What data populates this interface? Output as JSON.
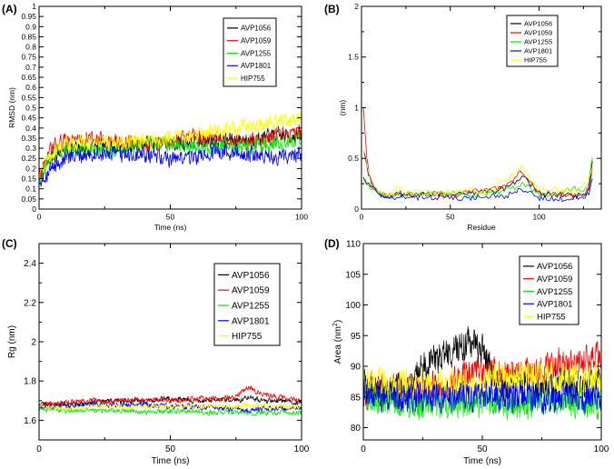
{
  "panels": [
    {
      "id": "A",
      "panel_label": "(A)",
      "font": "sans",
      "xlabel": "Time (ns)",
      "ylabel": "RMSD (nm)",
      "xlim": [
        0,
        100
      ],
      "ylim": [
        0,
        1
      ],
      "xticks": [
        0,
        50,
        100
      ],
      "yticks": [
        0,
        0.05,
        0.1,
        0.15,
        0.2,
        0.25,
        0.3,
        0.35,
        0.4,
        0.45,
        0.5,
        0.55,
        0.6,
        0.65,
        0.7,
        0.75,
        0.8,
        0.85,
        0.9,
        0.95,
        1
      ],
      "ytick_labels": [
        "0",
        "0.05",
        "0.1",
        "0.15",
        "0.2",
        "0.25",
        "0.3",
        "0.35",
        "0.4",
        "0.45",
        "0.5",
        "0.55",
        "0.6",
        "0.65",
        "0.7",
        "0.75",
        "0.8",
        "0.85",
        "0.9",
        "0.95",
        "1"
      ],
      "legend": [
        "AVP1056",
        "AVP1059",
        "AVP1255",
        "AVP1801",
        "HIP755"
      ]
    },
    {
      "id": "B",
      "panel_label": "(B)",
      "font": "sans",
      "xlabel": "Residue",
      "ylabel": "(nm)",
      "xlim": [
        0,
        135
      ],
      "ylim": [
        0,
        2
      ],
      "xticks": [
        0,
        50,
        100
      ],
      "yticks": [
        0,
        0.5,
        1,
        1.5,
        2
      ],
      "ytick_labels": [
        "0",
        "0.5",
        "1",
        "1.5",
        "2"
      ],
      "legend": [
        "AVP1056",
        "AVP1059",
        "AVP1255",
        "AVP1801",
        "HIP755"
      ]
    },
    {
      "id": "C",
      "panel_label": "(C)",
      "font": "serif",
      "xlabel": "Time (ns)",
      "ylabel": "Rg (nm)",
      "xlim": [
        0,
        100
      ],
      "ylim": [
        1.5,
        2.5
      ],
      "xticks": [
        0,
        50,
        100
      ],
      "yticks": [
        1.6,
        1.8,
        2,
        2.2,
        2.4
      ],
      "ytick_labels": [
        "1.6",
        "1.8",
        "2",
        "2.2",
        "2.4"
      ],
      "legend": [
        "AVP1056",
        "AVP1059",
        "AVP1255",
        "AVP1801",
        "HIP755"
      ]
    },
    {
      "id": "D",
      "panel_label": "(D)",
      "font": "serif",
      "xlabel": "Time (ns)",
      "ylabel": "Area (nm",
      "ylabel_sup": "2",
      "ylabel_close": ")",
      "xlim": [
        0,
        100
      ],
      "ylim": [
        78,
        110
      ],
      "xticks": [
        0,
        50,
        100
      ],
      "yticks": [
        80,
        85,
        90,
        95,
        100,
        105,
        110
      ],
      "ytick_labels": [
        "80",
        "85",
        "90",
        "95",
        "100",
        "105",
        "110"
      ],
      "legend": [
        "AVP1056",
        "AVP1059",
        "AVP1255",
        "AVP1801",
        "HIP755"
      ]
    }
  ],
  "colors": {
    "AVP1056": "#000000",
    "AVP1059": "#ff0000",
    "AVP1255": "#00ee00",
    "AVP1801": "#0000ff",
    "HIP755": "#ffff00"
  },
  "chart_data": [
    {
      "type": "line",
      "title": "(A)",
      "xlabel": "Time (ns)",
      "ylabel": "RMSD (nm)",
      "xlim": [
        0,
        100
      ],
      "ylim": [
        0,
        1
      ],
      "x": [
        0,
        5,
        10,
        20,
        30,
        40,
        50,
        60,
        70,
        80,
        90,
        100
      ],
      "series": [
        {
          "name": "AVP1056",
          "values": [
            0.15,
            0.26,
            0.29,
            0.3,
            0.31,
            0.32,
            0.32,
            0.33,
            0.34,
            0.34,
            0.36,
            0.36
          ]
        },
        {
          "name": "AVP1059",
          "values": [
            0.16,
            0.3,
            0.34,
            0.35,
            0.33,
            0.32,
            0.33,
            0.36,
            0.33,
            0.33,
            0.35,
            0.38
          ]
        },
        {
          "name": "AVP1255",
          "values": [
            0.15,
            0.27,
            0.29,
            0.29,
            0.29,
            0.31,
            0.33,
            0.3,
            0.31,
            0.31,
            0.32,
            0.34
          ]
        },
        {
          "name": "AVP1801",
          "values": [
            0.14,
            0.2,
            0.25,
            0.27,
            0.27,
            0.26,
            0.25,
            0.26,
            0.29,
            0.27,
            0.26,
            0.27
          ]
        },
        {
          "name": "HIP755",
          "values": [
            0.18,
            0.28,
            0.32,
            0.33,
            0.33,
            0.34,
            0.35,
            0.36,
            0.39,
            0.41,
            0.43,
            0.45
          ]
        }
      ]
    },
    {
      "type": "line",
      "title": "(B)",
      "xlabel": "Residue",
      "ylabel": "(nm)",
      "xlim": [
        0,
        135
      ],
      "ylim": [
        0,
        2
      ],
      "x": [
        1,
        3,
        6,
        10,
        15,
        20,
        30,
        40,
        50,
        60,
        70,
        80,
        85,
        90,
        95,
        100,
        110,
        120,
        125,
        128,
        130
      ],
      "series": [
        {
          "name": "AVP1056",
          "values": [
            0.3,
            0.25,
            0.2,
            0.15,
            0.12,
            0.15,
            0.13,
            0.16,
            0.14,
            0.15,
            0.16,
            0.2,
            0.25,
            0.32,
            0.25,
            0.15,
            0.14,
            0.13,
            0.13,
            0.2,
            0.45
          ]
        },
        {
          "name": "AVP1059",
          "values": [
            1.0,
            0.5,
            0.22,
            0.15,
            0.12,
            0.16,
            0.14,
            0.15,
            0.13,
            0.17,
            0.18,
            0.22,
            0.28,
            0.38,
            0.28,
            0.16,
            0.15,
            0.13,
            0.13,
            0.2,
            0.4
          ]
        },
        {
          "name": "AVP1255",
          "values": [
            0.3,
            0.25,
            0.2,
            0.15,
            0.12,
            0.14,
            0.15,
            0.14,
            0.16,
            0.13,
            0.15,
            0.18,
            0.2,
            0.25,
            0.2,
            0.14,
            0.16,
            0.2,
            0.15,
            0.25,
            0.5
          ]
        },
        {
          "name": "AVP1801",
          "values": [
            0.6,
            0.4,
            0.25,
            0.15,
            0.1,
            0.12,
            0.11,
            0.12,
            0.12,
            0.11,
            0.12,
            0.13,
            0.15,
            0.2,
            0.15,
            0.11,
            0.1,
            0.1,
            0.11,
            0.15,
            0.3
          ]
        },
        {
          "name": "HIP755",
          "values": [
            0.55,
            0.45,
            0.25,
            0.15,
            0.13,
            0.2,
            0.15,
            0.16,
            0.15,
            0.2,
            0.16,
            0.28,
            0.35,
            0.42,
            0.3,
            0.2,
            0.2,
            0.17,
            0.22,
            0.3,
            0.42
          ]
        }
      ]
    },
    {
      "type": "line",
      "title": "(C)",
      "xlabel": "Time (ns)",
      "ylabel": "Rg (nm)",
      "xlim": [
        0,
        100
      ],
      "ylim": [
        1.5,
        2.5
      ],
      "x": [
        0,
        10,
        20,
        30,
        40,
        50,
        60,
        70,
        75,
        80,
        85,
        90,
        100
      ],
      "series": [
        {
          "name": "AVP1056",
          "values": [
            1.68,
            1.68,
            1.69,
            1.7,
            1.7,
            1.71,
            1.7,
            1.7,
            1.7,
            1.72,
            1.7,
            1.7,
            1.69
          ]
        },
        {
          "name": "AVP1059",
          "values": [
            1.68,
            1.69,
            1.7,
            1.7,
            1.71,
            1.7,
            1.71,
            1.71,
            1.72,
            1.77,
            1.73,
            1.72,
            1.7
          ]
        },
        {
          "name": "AVP1255",
          "values": [
            1.66,
            1.65,
            1.65,
            1.65,
            1.64,
            1.65,
            1.64,
            1.64,
            1.64,
            1.64,
            1.64,
            1.64,
            1.64
          ]
        },
        {
          "name": "AVP1801",
          "values": [
            1.67,
            1.67,
            1.68,
            1.68,
            1.68,
            1.67,
            1.67,
            1.66,
            1.66,
            1.65,
            1.66,
            1.66,
            1.66
          ]
        },
        {
          "name": "HIP755",
          "values": [
            1.67,
            1.66,
            1.67,
            1.67,
            1.67,
            1.67,
            1.67,
            1.67,
            1.67,
            1.68,
            1.67,
            1.67,
            1.67
          ]
        }
      ]
    },
    {
      "type": "line",
      "title": "(D)",
      "xlabel": "Time (ns)",
      "ylabel": "Area (nm2)",
      "xlim": [
        0,
        100
      ],
      "ylim": [
        78,
        110
      ],
      "x": [
        0,
        10,
        20,
        25,
        30,
        35,
        40,
        45,
        50,
        55,
        60,
        70,
        80,
        90,
        100
      ],
      "series": [
        {
          "name": "AVP1056",
          "values": [
            87,
            86,
            86,
            90,
            91,
            92,
            93,
            94,
            93,
            88,
            87,
            87,
            87,
            87,
            87
          ]
        },
        {
          "name": "AVP1059",
          "values": [
            86,
            86,
            86,
            86,
            87,
            87,
            88,
            89,
            89,
            89,
            89,
            89,
            90,
            91,
            91
          ]
        },
        {
          "name": "AVP1255",
          "values": [
            85,
            84,
            84,
            84,
            84,
            84,
            84,
            84,
            84,
            84,
            84,
            84,
            84,
            84,
            84
          ]
        },
        {
          "name": "AVP1801",
          "values": [
            86,
            85,
            85,
            85,
            85,
            85,
            85,
            85,
            85,
            85,
            85,
            85,
            85,
            85,
            85
          ]
        },
        {
          "name": "HIP755",
          "values": [
            88,
            87,
            87,
            87,
            87,
            87,
            87,
            87,
            87,
            88,
            88,
            88,
            88,
            88,
            88
          ]
        }
      ]
    }
  ]
}
